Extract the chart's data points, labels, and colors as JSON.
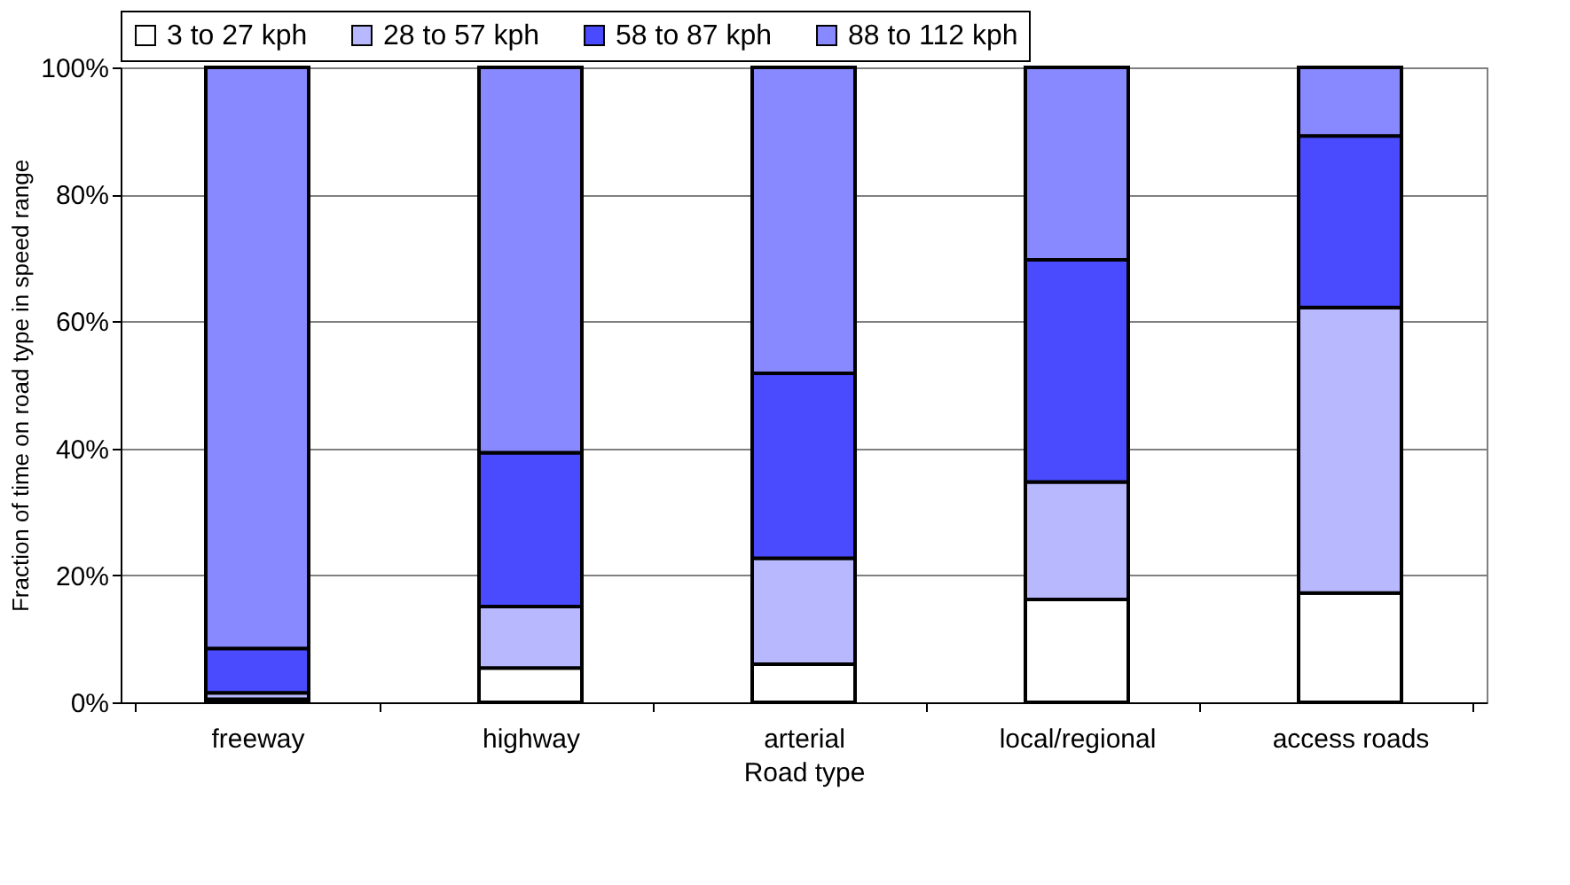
{
  "chart_data": {
    "type": "bar",
    "stacked": true,
    "xlabel": "Road type",
    "ylabel": "Fraction of time on road type in speed range",
    "categories": [
      "freeway",
      "highway",
      "arterial",
      "local/regional",
      "access roads"
    ],
    "series": [
      {
        "name": "3 to 27 kph",
        "color": "#ffffff",
        "values": [
          0.5,
          5.4,
          6.0,
          16.2,
          17.2
        ]
      },
      {
        "name": "28 to 57 kph",
        "color": "#b8b8ff",
        "values": [
          1.0,
          9.7,
          16.7,
          18.5,
          45.0
        ]
      },
      {
        "name": "58 to 87 kph",
        "color": "#4a4aff",
        "values": [
          7.0,
          24.2,
          29.1,
          35.0,
          27.0
        ]
      },
      {
        "name": "88 to 112 kph",
        "color": "#8888ff",
        "values": [
          91.5,
          60.7,
          48.2,
          30.3,
          10.8
        ]
      }
    ],
    "ylim": [
      0,
      100
    ],
    "yticks": [
      {
        "value": 0,
        "label": "0%"
      },
      {
        "value": 20,
        "label": "20%"
      },
      {
        "value": 40,
        "label": "40%"
      },
      {
        "value": 60,
        "label": "60%"
      },
      {
        "value": 80,
        "label": "80%"
      },
      {
        "value": 100,
        "label": "100%"
      }
    ],
    "grid": "y",
    "legend": "top"
  }
}
